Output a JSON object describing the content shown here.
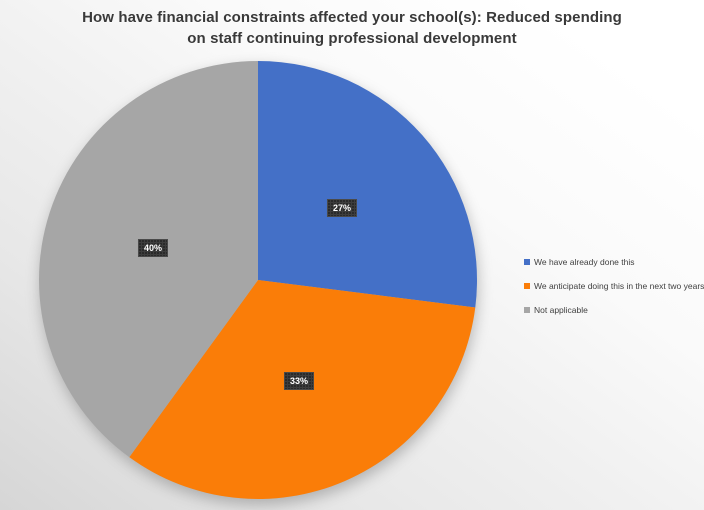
{
  "title": {
    "text": "How have financial constraints affected your school(s): Reduced spending on staff continuing professional development"
  },
  "chart_data": {
    "type": "pie",
    "title": "How have financial constraints affected your school(s): Reduced spending on staff continuing professional development",
    "start_angle_deg": 0,
    "direction": "clockwise",
    "data_labels": "percent",
    "legend_position": "right",
    "slices": [
      {
        "label": "We have already done this",
        "value": 27,
        "data_label": "27%",
        "color": "#4470c7"
      },
      {
        "label": "We anticipate doing this in the next two years",
        "value": 33,
        "data_label": "33%",
        "color": "#fa7d08"
      },
      {
        "label": "Not applicable",
        "value": 40,
        "data_label": "40%",
        "color": "#a6a6a6"
      }
    ],
    "colors": {
      "label_chip_bg": "#3d3d3d",
      "label_chip_text": "#ffffff",
      "title_text": "#393939",
      "legend_text": "#404040"
    }
  }
}
